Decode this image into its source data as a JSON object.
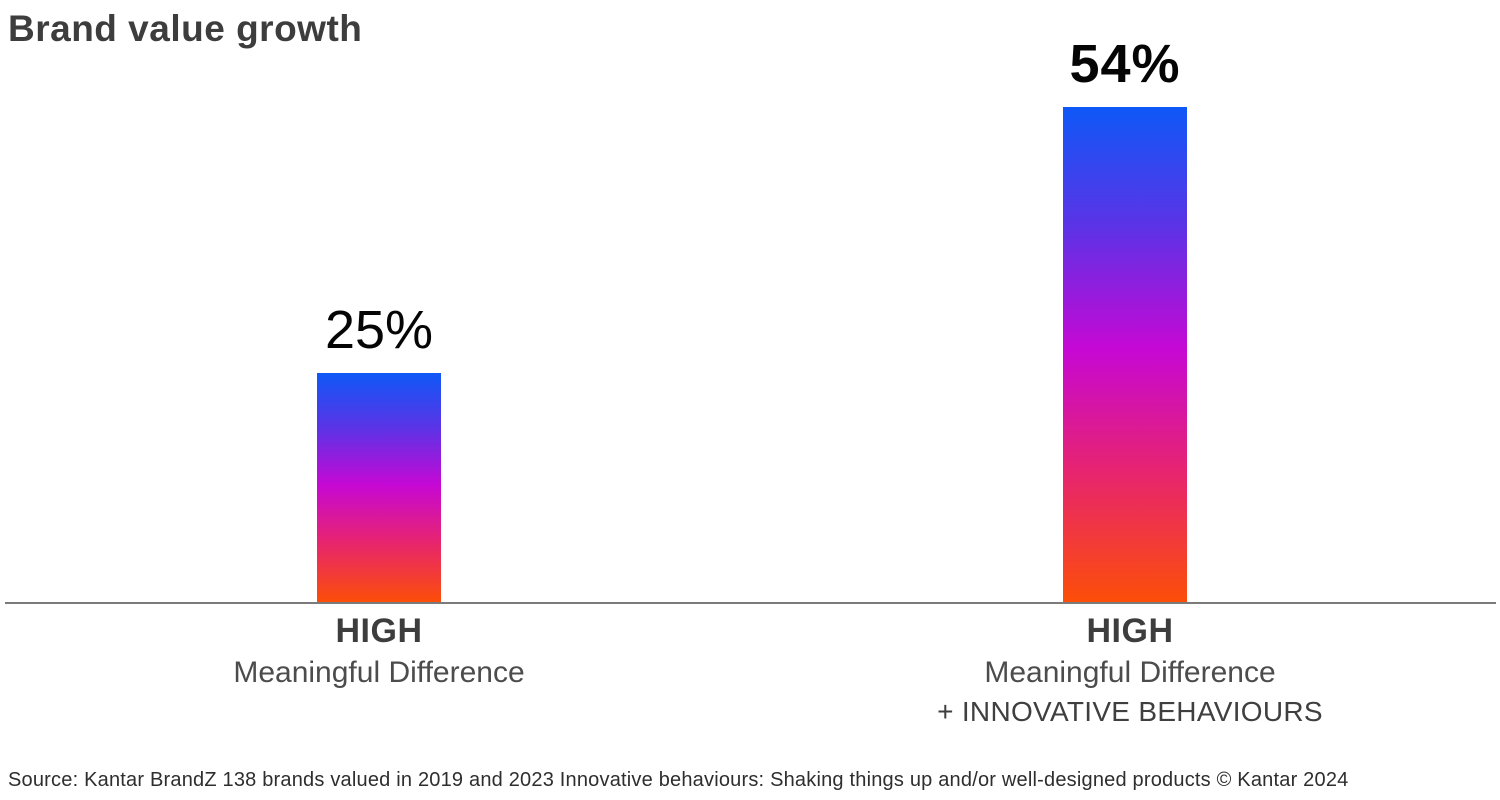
{
  "title": "Brand value growth",
  "source": "Source: Kantar BrandZ 138 brands valued in 2019 and 2023 Innovative behaviours: Shaking things up and/or well-designed products © Kantar 2024",
  "colors": {
    "gradient_top_blue": "#0e58f7",
    "gradient_violet": "#5b33e6",
    "gradient_magenta": "#c608d4",
    "gradient_pink": "#e62372",
    "gradient_bottom_orange": "#fc4e08",
    "title_text": "#3d3d3d",
    "axis_line": "#7b7b7b",
    "value_text": "#050505"
  },
  "chart_data": {
    "type": "bar",
    "title": "Brand value growth",
    "unit": "%",
    "ylim": [
      0,
      60
    ],
    "grid": false,
    "legend": "none",
    "categories": [
      "HIGH Meaningful Difference",
      "HIGH Meaningful Difference + INNOVATIVE BEHAVIOURS"
    ],
    "values": [
      25,
      54
    ],
    "bars": [
      {
        "value": 25,
        "value_label": "25%",
        "cat_line1": "HIGH",
        "cat_line2": "Meaningful Difference"
      },
      {
        "value": 54,
        "value_label": "54%",
        "cat_line1": "HIGH",
        "cat_line2": "Meaningful Difference",
        "cat_line3": "+ INNOVATIVE BEHAVIOURS"
      }
    ]
  }
}
